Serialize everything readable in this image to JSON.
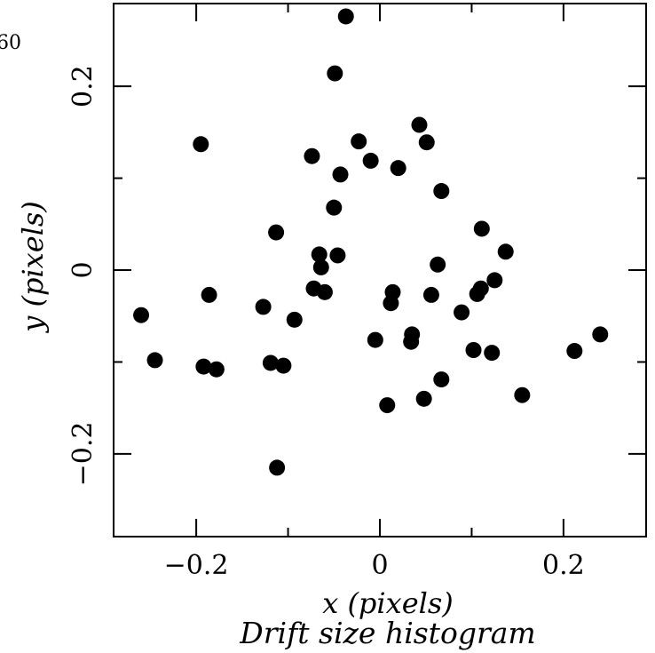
{
  "chart_data": {
    "type": "scatter",
    "title": "",
    "caption": "Drift size histogram",
    "xlabel": "x (pixels)",
    "ylabel": "y (pixels)",
    "xlim": [
      -0.29,
      0.29
    ],
    "ylim": [
      -0.29,
      0.29
    ],
    "grid": false,
    "marker_color": "#000000",
    "x_ticks": [
      {
        "value": -0.2,
        "label": "−0.2"
      },
      {
        "value": 0,
        "label": "0"
      },
      {
        "value": 0.2,
        "label": "0.2"
      }
    ],
    "y_ticks": [
      {
        "value": -0.2,
        "label": "−0.2"
      },
      {
        "value": 0,
        "label": "0"
      },
      {
        "value": 0.2,
        "label": "0.2"
      }
    ],
    "cropped_text": "60",
    "points": [
      {
        "x": -0.037,
        "y": 0.276
      },
      {
        "x": -0.049,
        "y": 0.214
      },
      {
        "x": 0.043,
        "y": 0.158
      },
      {
        "x": 0.051,
        "y": 0.139
      },
      {
        "x": -0.023,
        "y": 0.14
      },
      {
        "x": -0.195,
        "y": 0.137
      },
      {
        "x": -0.074,
        "y": 0.124
      },
      {
        "x": -0.01,
        "y": 0.119
      },
      {
        "x": 0.02,
        "y": 0.111
      },
      {
        "x": -0.043,
        "y": 0.104
      },
      {
        "x": 0.067,
        "y": 0.086
      },
      {
        "x": -0.05,
        "y": 0.068
      },
      {
        "x": 0.111,
        "y": 0.045
      },
      {
        "x": -0.113,
        "y": 0.041
      },
      {
        "x": 0.137,
        "y": 0.02
      },
      {
        "x": -0.066,
        "y": 0.017
      },
      {
        "x": -0.046,
        "y": 0.016
      },
      {
        "x": 0.063,
        "y": 0.006
      },
      {
        "x": -0.064,
        "y": 0.003
      },
      {
        "x": 0.125,
        "y": -0.011
      },
      {
        "x": 0.11,
        "y": -0.02
      },
      {
        "x": -0.072,
        "y": -0.02
      },
      {
        "x": 0.014,
        "y": -0.024
      },
      {
        "x": -0.06,
        "y": -0.024
      },
      {
        "x": 0.106,
        "y": -0.026
      },
      {
        "x": -0.186,
        "y": -0.027
      },
      {
        "x": 0.056,
        "y": -0.027
      },
      {
        "x": 0.012,
        "y": -0.036
      },
      {
        "x": -0.127,
        "y": -0.04
      },
      {
        "x": 0.089,
        "y": -0.046
      },
      {
        "x": -0.26,
        "y": -0.049
      },
      {
        "x": -0.093,
        "y": -0.054
      },
      {
        "x": 0.035,
        "y": -0.07
      },
      {
        "x": 0.24,
        "y": -0.07
      },
      {
        "x": -0.005,
        "y": -0.076
      },
      {
        "x": 0.034,
        "y": -0.078
      },
      {
        "x": 0.102,
        "y": -0.087
      },
      {
        "x": 0.212,
        "y": -0.088
      },
      {
        "x": 0.122,
        "y": -0.09
      },
      {
        "x": -0.245,
        "y": -0.098
      },
      {
        "x": -0.119,
        "y": -0.101
      },
      {
        "x": -0.105,
        "y": -0.104
      },
      {
        "x": -0.192,
        "y": -0.105
      },
      {
        "x": -0.178,
        "y": -0.108
      },
      {
        "x": 0.067,
        "y": -0.119
      },
      {
        "x": 0.155,
        "y": -0.136
      },
      {
        "x": 0.048,
        "y": -0.14
      },
      {
        "x": 0.008,
        "y": -0.147
      },
      {
        "x": -0.112,
        "y": -0.215
      }
    ]
  }
}
